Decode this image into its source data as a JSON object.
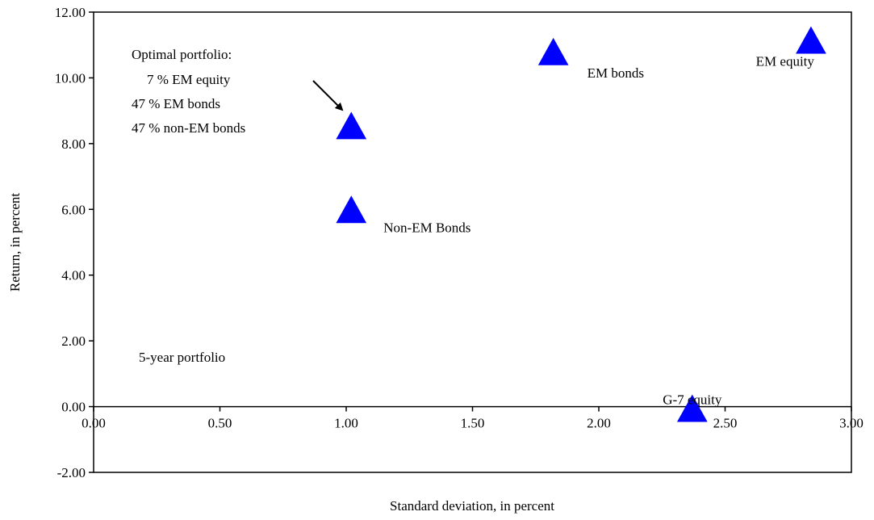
{
  "chart_data": {
    "type": "scatter",
    "xlabel": "Standard deviation, in percent",
    "ylabel": "Return, in percent",
    "xlim": [
      0,
      3
    ],
    "ylim": [
      -2,
      12
    ],
    "x_ticks": [
      "0.00",
      "0.50",
      "1.00",
      "1.50",
      "2.00",
      "2.50",
      "3.00"
    ],
    "y_ticks": [
      "12.00",
      "10.00",
      "8.00",
      "6.00",
      "4.00",
      "2.00",
      "0.00",
      "-2.00"
    ],
    "grid": false,
    "marker": "triangle",
    "marker_color": "#0000FF",
    "points": [
      {
        "label": "",
        "x": 1.02,
        "y": 8.5
      },
      {
        "label": "Non-EM Bonds",
        "x": 1.02,
        "y": 5.95
      },
      {
        "label": "EM bonds",
        "x": 1.82,
        "y": 10.75
      },
      {
        "label": "EM equity",
        "x": 2.84,
        "y": 11.1
      },
      {
        "label": "G-7 equity",
        "x": 2.37,
        "y": -0.1
      }
    ],
    "annotations": {
      "optimal_title": "Optimal portfolio:",
      "optimal_lines": [
        "7 % EM equity",
        "47 %  EM bonds",
        "47 % non-EM bonds"
      ],
      "portfolio_note": "5-year portfolio"
    }
  }
}
